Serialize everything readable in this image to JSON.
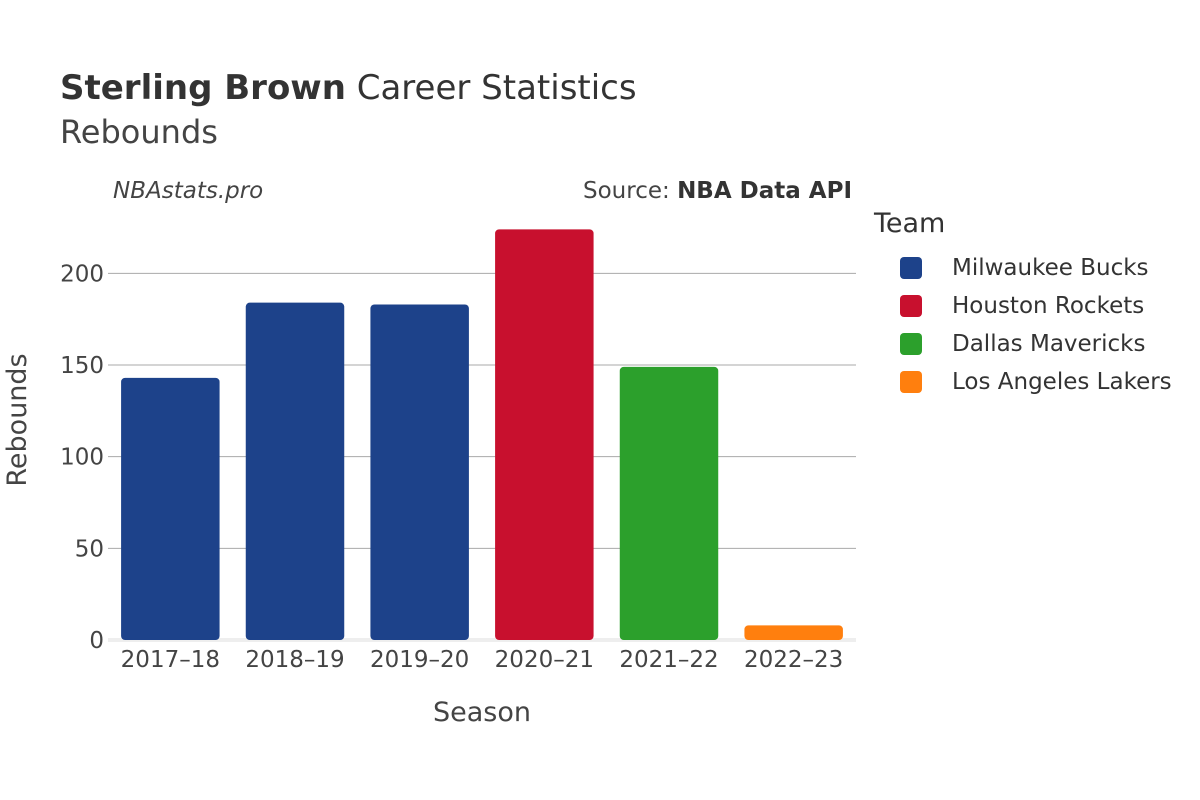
{
  "header": {
    "title_bold": "Sterling Brown",
    "title_rest": "Career Statistics",
    "subtitle": "Rebounds",
    "watermark": "NBAstats.pro",
    "source_prefix": "Source: ",
    "source_name": "NBA Data API"
  },
  "legend": {
    "title": "Team",
    "items": [
      {
        "label": "Milwaukee Bucks",
        "color": "#1d428a"
      },
      {
        "label": "Houston Rockets",
        "color": "#c8102e"
      },
      {
        "label": "Dallas Mavericks",
        "color": "#2ca02c"
      },
      {
        "label": "Los Angeles Lakers",
        "color": "#ff7f0e"
      }
    ]
  },
  "chart_data": {
    "type": "bar",
    "title": "Sterling Brown Career Statistics",
    "subtitle": "Rebounds",
    "xlabel": "Season",
    "ylabel": "Rebounds",
    "categories": [
      "2017–18",
      "2018–19",
      "2019–20",
      "2020–21",
      "2021–22",
      "2022–23"
    ],
    "values": [
      143,
      184,
      183,
      224,
      149,
      8
    ],
    "teams": [
      "Milwaukee Bucks",
      "Milwaukee Bucks",
      "Milwaukee Bucks",
      "Houston Rockets",
      "Dallas Mavericks",
      "Los Angeles Lakers"
    ],
    "ylim": [
      0,
      228
    ],
    "yticks": [
      0,
      50,
      100,
      150,
      200
    ],
    "grid": true,
    "legend_position": "right"
  }
}
